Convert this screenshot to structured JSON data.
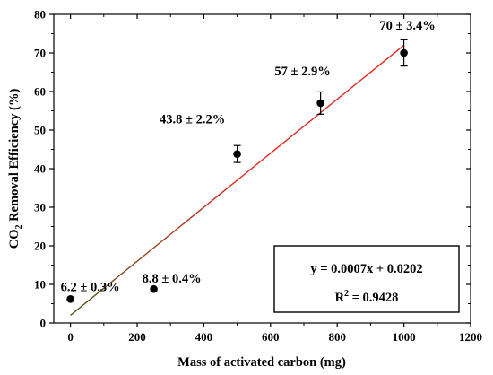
{
  "chart_data": {
    "type": "scatter",
    "xlabel": "Mass of activated carbon (mg)",
    "ylabel_parts": {
      "pre": "CO",
      "sub": "2",
      "post": " Removal Efficiency (%)"
    },
    "xlim": [
      -50,
      1200
    ],
    "ylim": [
      0,
      80
    ],
    "xticks": [
      0,
      200,
      400,
      600,
      800,
      1000,
      1200
    ],
    "yticks": [
      0,
      10,
      20,
      30,
      40,
      50,
      60,
      70,
      80
    ],
    "points": [
      {
        "x": 0,
        "y": 6.2,
        "err": 0.3,
        "label": "6.2 ± 0.3%"
      },
      {
        "x": 250,
        "y": 8.8,
        "err": 0.4,
        "label": "8.8 ± 0.4%"
      },
      {
        "x": 500,
        "y": 43.8,
        "err": 2.2,
        "label": "43.8 ± 2.2%"
      },
      {
        "x": 750,
        "y": 57,
        "err": 2.9,
        "label": "57 ± 2.9%"
      },
      {
        "x": 1000,
        "y": 70,
        "err": 3.4,
        "label": "70 ± 3.4%"
      }
    ],
    "fit_line": {
      "x": [
        0,
        1000
      ],
      "y": [
        2.0,
        72.0
      ],
      "color": "#e8231e",
      "color_start": "#5a5a1e"
    },
    "equation": "y = 0.0007x + 0.0202",
    "r_squared": {
      "prefix": "R",
      "sup": "2",
      "value": " = 0.9428"
    },
    "grid": false,
    "marker_color": "#000000"
  }
}
